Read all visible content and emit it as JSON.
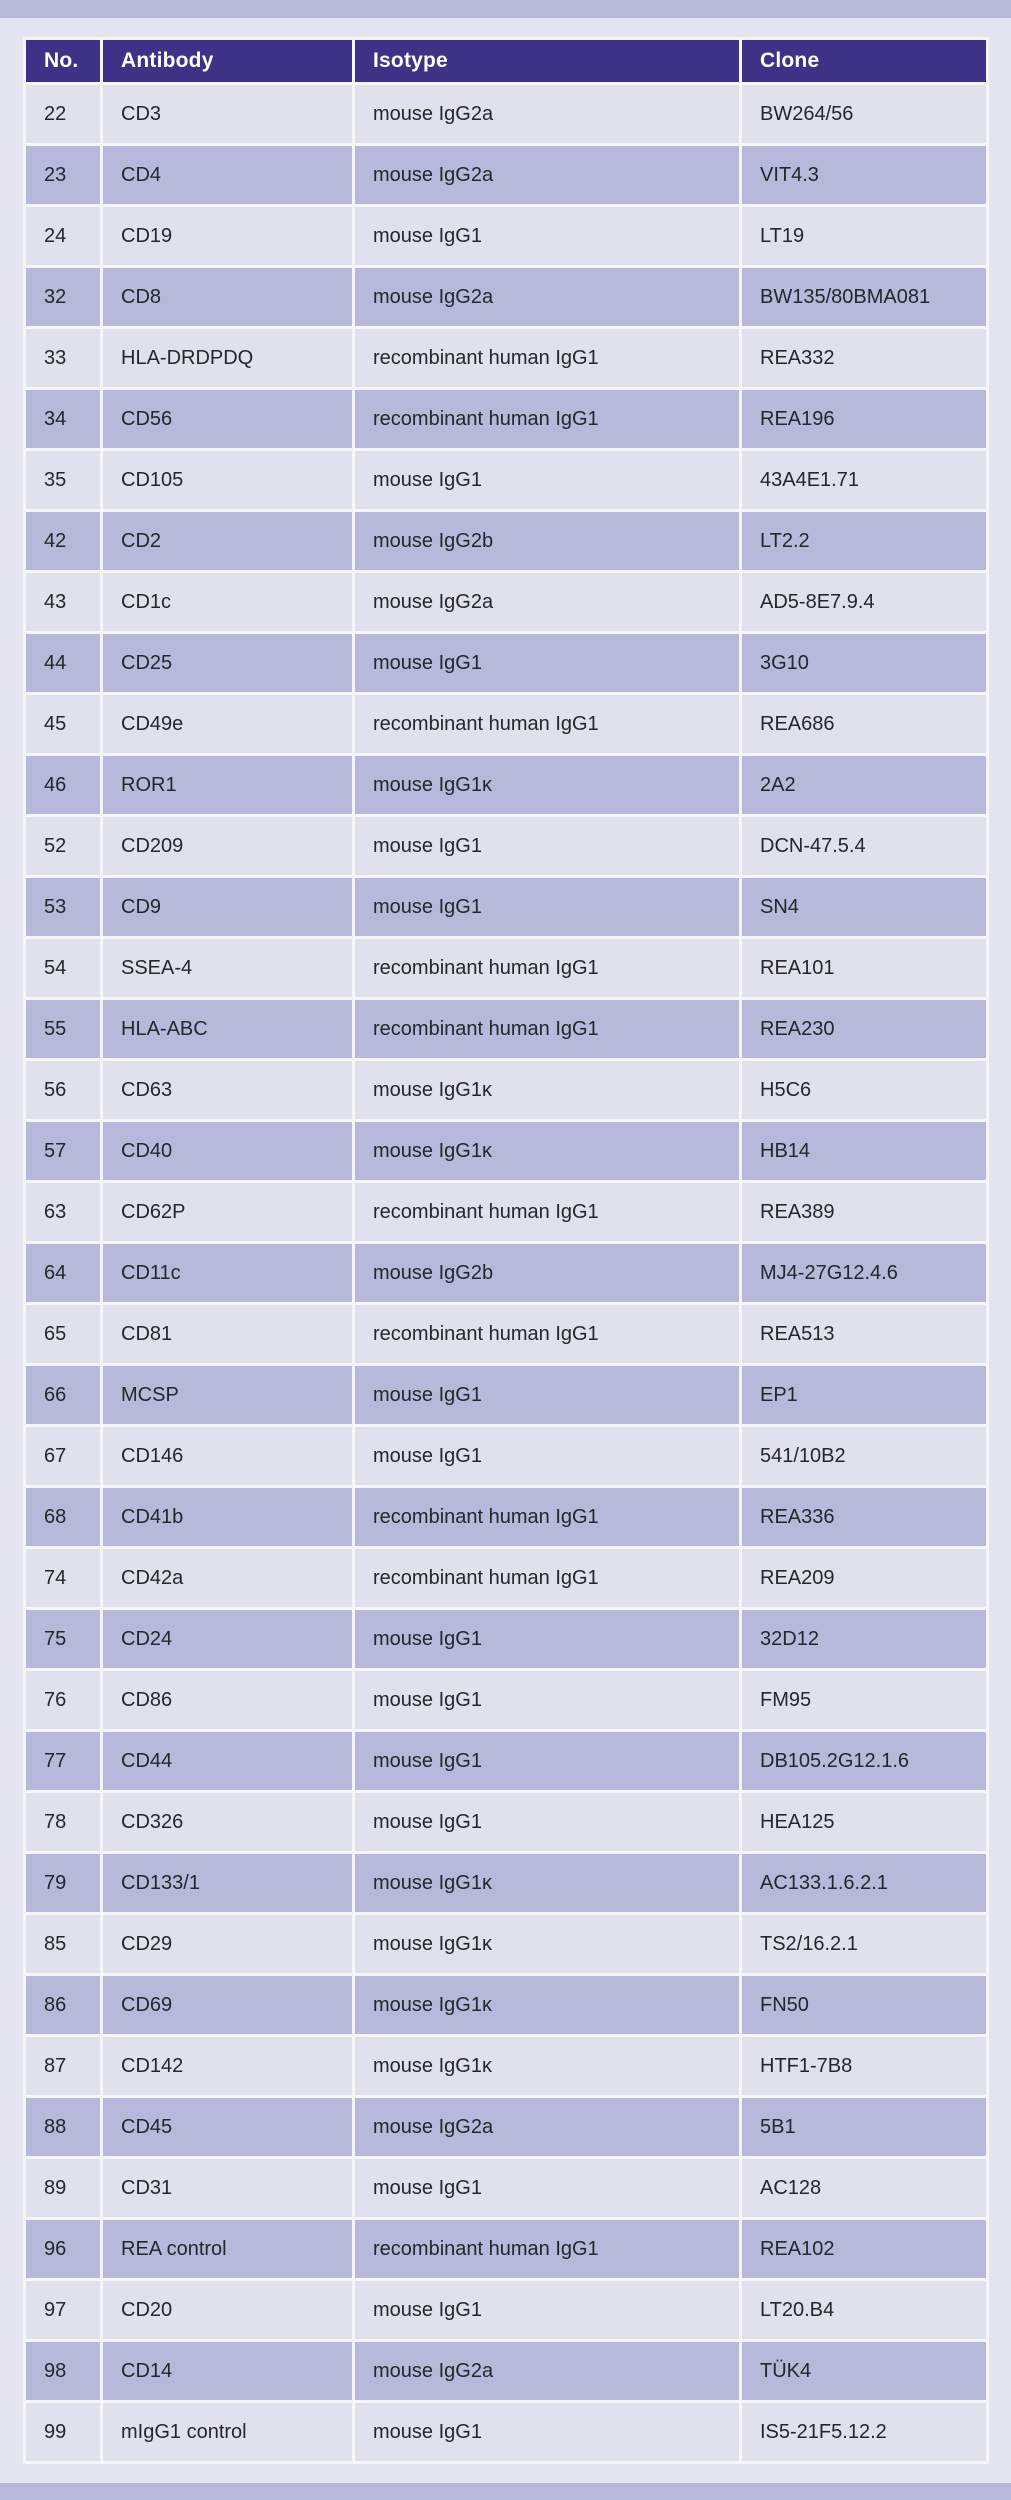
{
  "page": {
    "background": "#e4e5f0",
    "top_band_color": "#b6b9da",
    "bottom_band_color": "#b6b9da",
    "grid_line_color": "#f4f6fa"
  },
  "table": {
    "header_bg": "#3e3287",
    "header_text_color": "#ffffff",
    "row_bg_light": "#dfe1ec",
    "row_bg_shaded": "#b6b9da",
    "text_color": "#26262c",
    "headers": [
      "No.",
      "Antibody",
      "Isotype",
      "Clone"
    ],
    "rows": [
      {
        "no": "22",
        "antibody": "CD3",
        "isotype": "mouse IgG2a",
        "clone": "BW264/56"
      },
      {
        "no": "23",
        "antibody": "CD4",
        "isotype": "mouse IgG2a",
        "clone": "VIT4.3"
      },
      {
        "no": "24",
        "antibody": "CD19",
        "isotype": "mouse IgG1",
        "clone": "LT19"
      },
      {
        "no": "32",
        "antibody": "CD8",
        "isotype": "mouse IgG2a",
        "clone": "BW135/80BMA081"
      },
      {
        "no": "33",
        "antibody": "HLA-DRDPDQ",
        "isotype": "recombinant human IgG1",
        "clone": "REA332"
      },
      {
        "no": "34",
        "antibody": "CD56",
        "isotype": "recombinant human IgG1",
        "clone": "REA196"
      },
      {
        "no": "35",
        "antibody": "CD105",
        "isotype": "mouse IgG1",
        "clone": "43A4E1.71"
      },
      {
        "no": "42",
        "antibody": "CD2",
        "isotype": "mouse IgG2b",
        "clone": "LT2.2"
      },
      {
        "no": "43",
        "antibody": "CD1c",
        "isotype": "mouse IgG2a",
        "clone": "AD5-8E7.9.4"
      },
      {
        "no": "44",
        "antibody": "CD25",
        "isotype": "mouse IgG1",
        "clone": "3G10"
      },
      {
        "no": "45",
        "antibody": "CD49e",
        "isotype": "recombinant human IgG1",
        "clone": "REA686"
      },
      {
        "no": "46",
        "antibody": "ROR1",
        "isotype": "mouse IgG1κ",
        "clone": "2A2"
      },
      {
        "no": "52",
        "antibody": "CD209",
        "isotype": "mouse IgG1",
        "clone": "DCN-47.5.4"
      },
      {
        "no": "53",
        "antibody": "CD9",
        "isotype": "mouse IgG1",
        "clone": "SN4"
      },
      {
        "no": "54",
        "antibody": "SSEA-4",
        "isotype": "recombinant human IgG1",
        "clone": "REA101"
      },
      {
        "no": "55",
        "antibody": "HLA-ABC",
        "isotype": "recombinant human IgG1",
        "clone": "REA230"
      },
      {
        "no": "56",
        "antibody": "CD63",
        "isotype": "mouse IgG1κ",
        "clone": "H5C6"
      },
      {
        "no": "57",
        "antibody": "CD40",
        "isotype": "mouse IgG1κ",
        "clone": "HB14"
      },
      {
        "no": "63",
        "antibody": "CD62P",
        "isotype": "recombinant human IgG1",
        "clone": "REA389"
      },
      {
        "no": "64",
        "antibody": "CD11c",
        "isotype": "mouse IgG2b",
        "clone": "MJ4-27G12.4.6"
      },
      {
        "no": "65",
        "antibody": "CD81",
        "isotype": "recombinant human IgG1",
        "clone": "REA513"
      },
      {
        "no": "66",
        "antibody": "MCSP",
        "isotype": "mouse IgG1",
        "clone": "EP1"
      },
      {
        "no": "67",
        "antibody": "CD146",
        "isotype": "mouse IgG1",
        "clone": "541/10B2"
      },
      {
        "no": "68",
        "antibody": "CD41b",
        "isotype": "recombinant human IgG1",
        "clone": "REA336"
      },
      {
        "no": "74",
        "antibody": "CD42a",
        "isotype": "recombinant human IgG1",
        "clone": "REA209"
      },
      {
        "no": "75",
        "antibody": "CD24",
        "isotype": "mouse IgG1",
        "clone": "32D12"
      },
      {
        "no": "76",
        "antibody": "CD86",
        "isotype": "mouse IgG1",
        "clone": "FM95"
      },
      {
        "no": "77",
        "antibody": "CD44",
        "isotype": "mouse IgG1",
        "clone": "DB105.2G12.1.6"
      },
      {
        "no": "78",
        "antibody": "CD326",
        "isotype": "mouse IgG1",
        "clone": "HEA125"
      },
      {
        "no": "79",
        "antibody": "CD133/1",
        "isotype": "mouse IgG1κ",
        "clone": "AC133.1.6.2.1"
      },
      {
        "no": "85",
        "antibody": "CD29",
        "isotype": "mouse IgG1κ",
        "clone": "TS2/16.2.1"
      },
      {
        "no": "86",
        "antibody": "CD69",
        "isotype": "mouse IgG1κ",
        "clone": "FN50"
      },
      {
        "no": "87",
        "antibody": "CD142",
        "isotype": "mouse IgG1κ",
        "clone": "HTF1-7B8"
      },
      {
        "no": "88",
        "antibody": "CD45",
        "isotype": "mouse IgG2a",
        "clone": "5B1"
      },
      {
        "no": "89",
        "antibody": "CD31",
        "isotype": "mouse IgG1",
        "clone": "AC128"
      },
      {
        "no": "96",
        "antibody": "REA control",
        "isotype": "recombinant human IgG1",
        "clone": "REA102"
      },
      {
        "no": "97",
        "antibody": "CD20",
        "isotype": "mouse IgG1",
        "clone": "LT20.B4"
      },
      {
        "no": "98",
        "antibody": "CD14",
        "isotype": "mouse IgG2a",
        "clone": "TÜK4"
      },
      {
        "no": "99",
        "antibody": "mIgG1 control",
        "isotype": "mouse IgG1",
        "clone": "IS5-21F5.12.2"
      }
    ]
  }
}
